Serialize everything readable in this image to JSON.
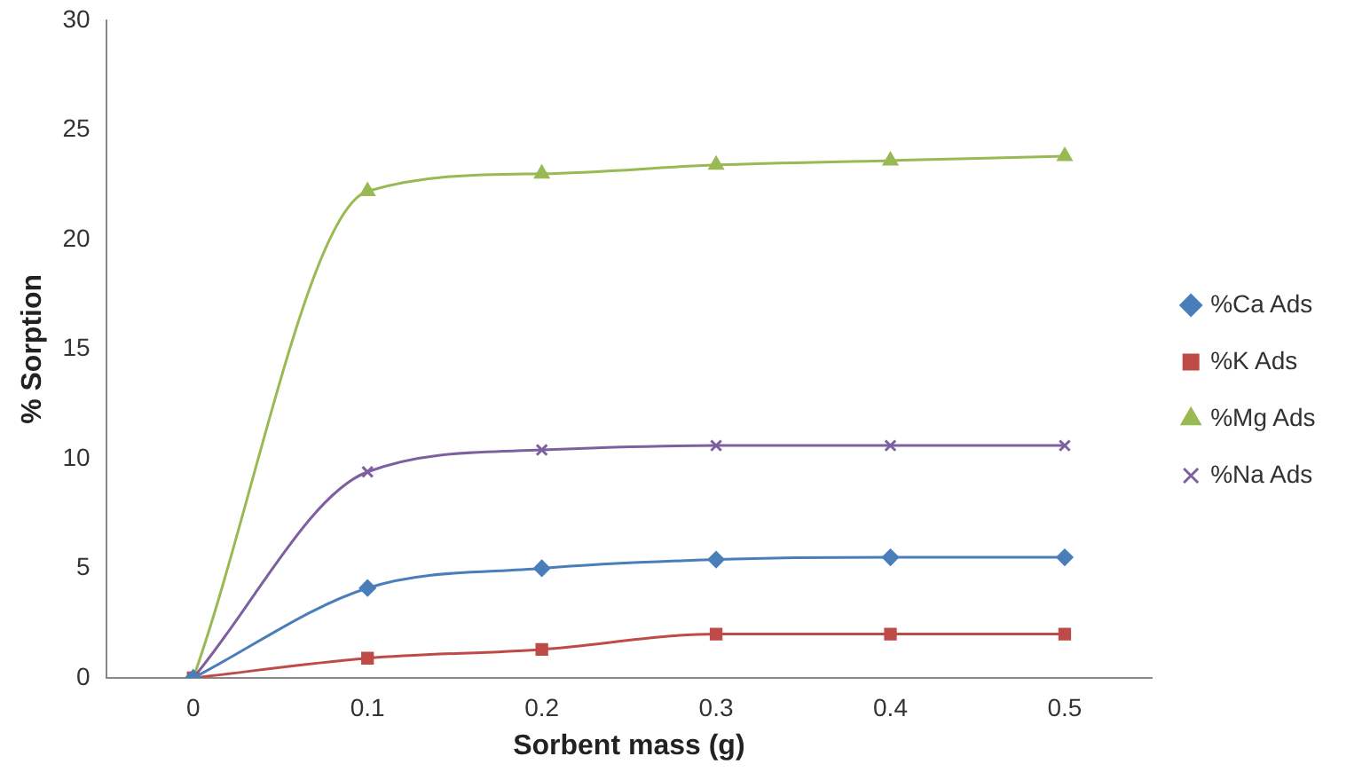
{
  "chart_data": {
    "type": "line",
    "xlabel": "Sorbent mass (g)",
    "ylabel": "% Sorption",
    "categories": [
      "0",
      "0.1",
      "0.2",
      "0.3",
      "0.4",
      "0.5"
    ],
    "series": [
      {
        "name": "%Ca Ads",
        "color": "#4a7ebb",
        "marker": "diamond",
        "values": [
          0,
          4.1,
          5.0,
          5.4,
          5.5,
          5.5
        ]
      },
      {
        "name": "%K Ads",
        "color": "#be4b48",
        "marker": "square",
        "values": [
          0,
          0.9,
          1.3,
          2.0,
          2.0,
          2.0
        ]
      },
      {
        "name": "%Mg Ads",
        "color": "#98b954",
        "marker": "triangle",
        "values": [
          0,
          22.2,
          23.0,
          23.4,
          23.6,
          23.8
        ]
      },
      {
        "name": "%Na Ads",
        "color": "#7d60a0",
        "marker": "cross",
        "values": [
          0,
          9.4,
          10.4,
          10.6,
          10.6,
          10.6
        ]
      }
    ],
    "ylim": [
      0,
      30
    ],
    "yticks": [
      0,
      5,
      10,
      15,
      20,
      25,
      30
    ],
    "grid": false,
    "legend": "right",
    "line_style": "solid"
  }
}
